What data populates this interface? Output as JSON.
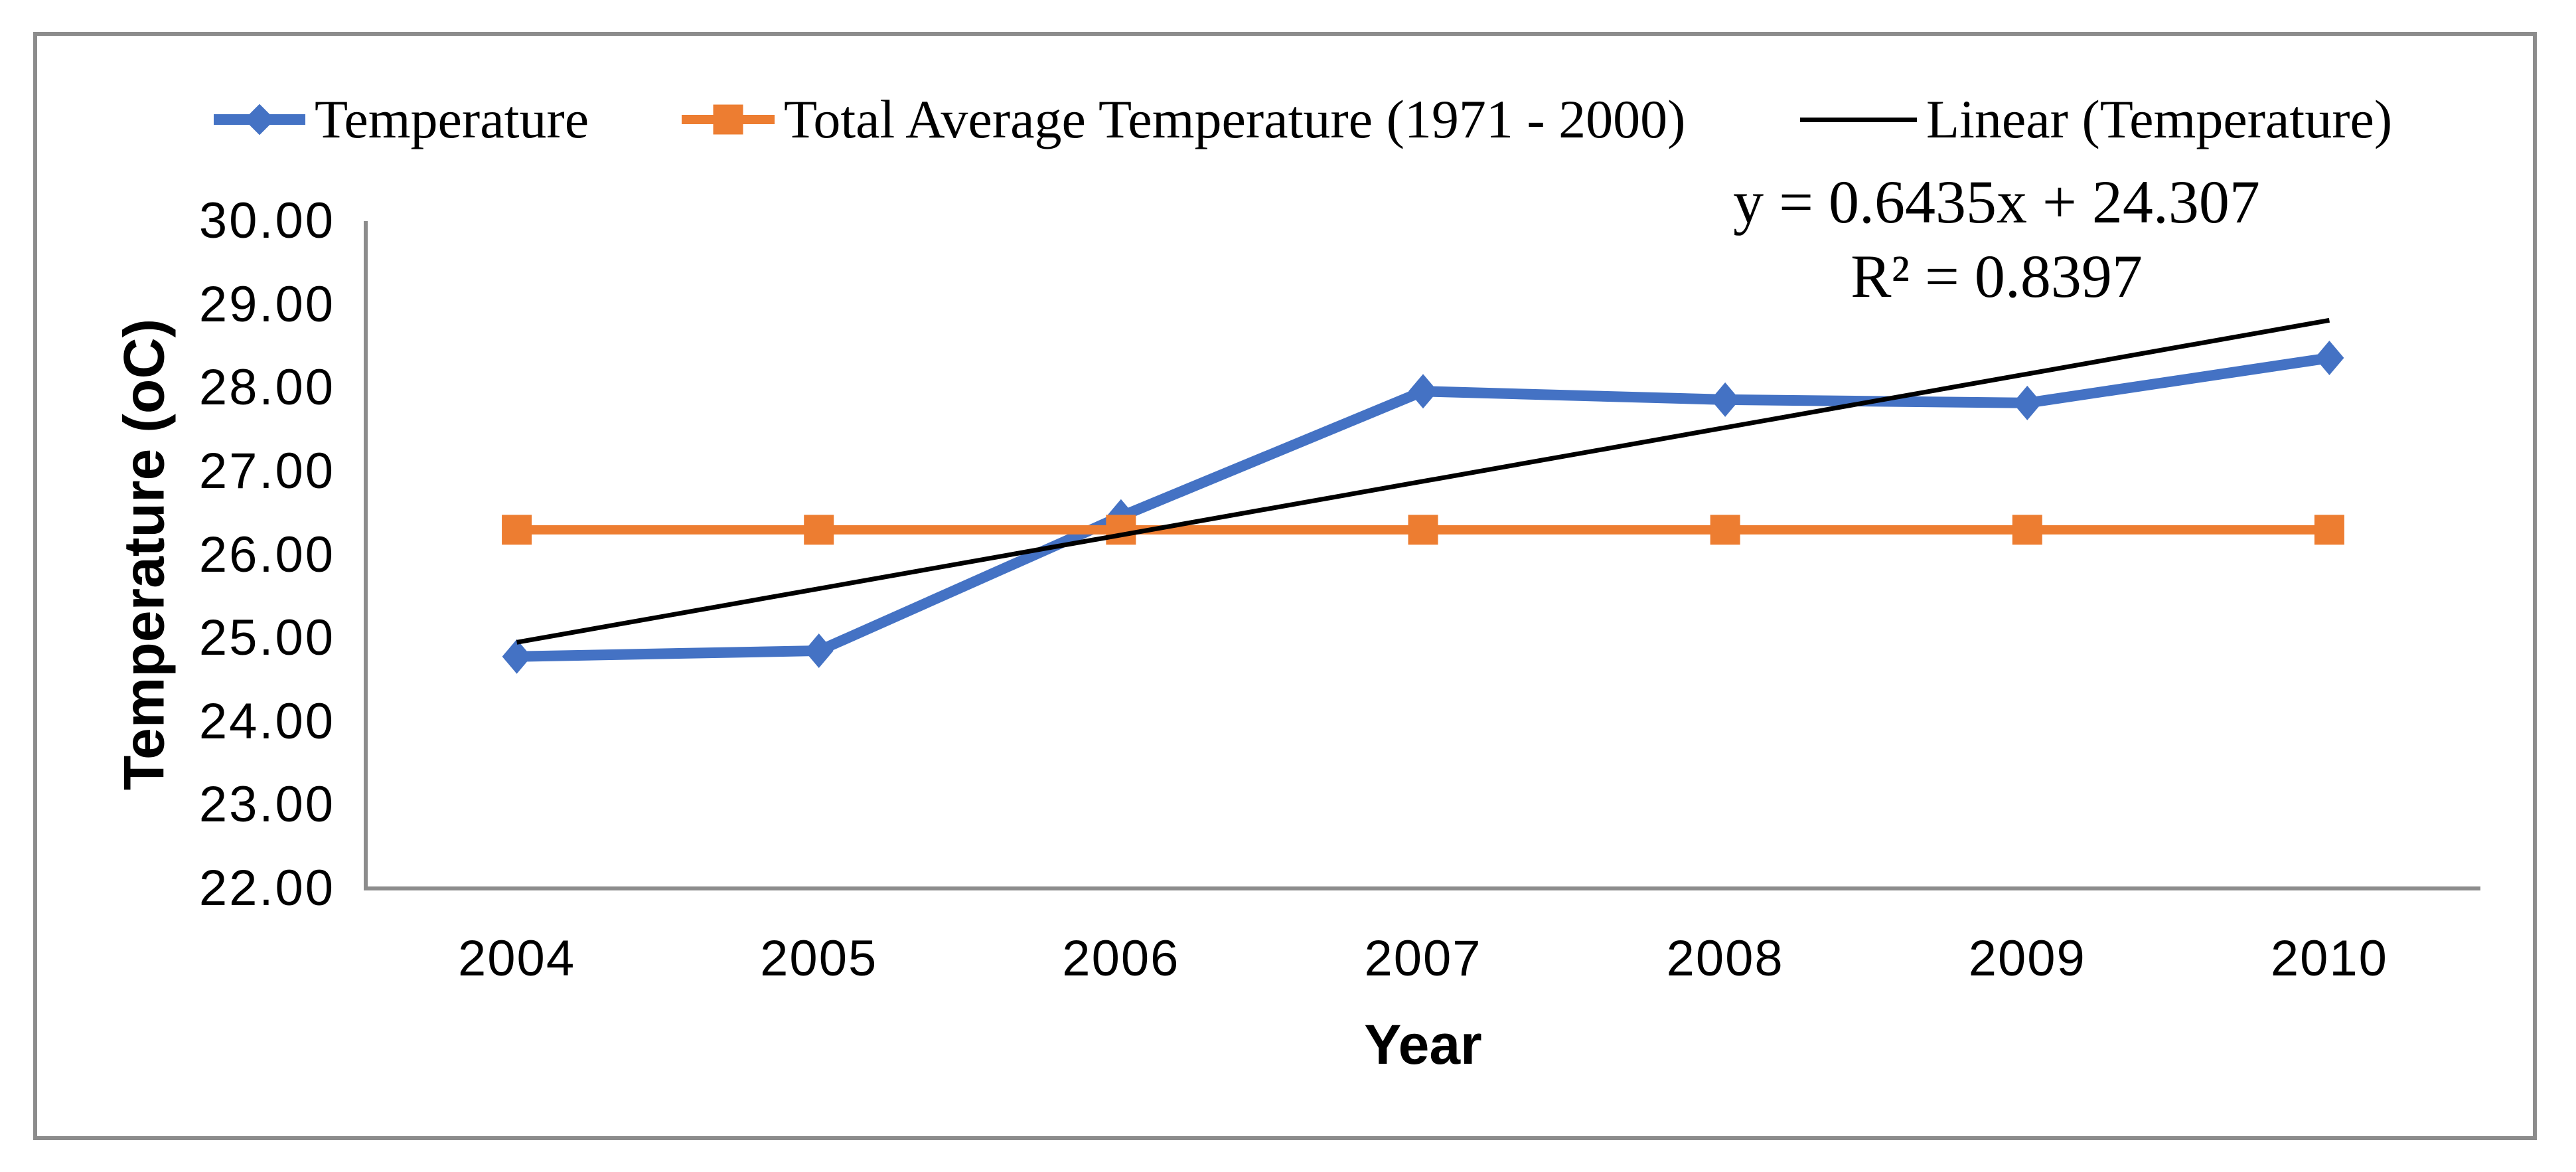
{
  "figure": {
    "background": "#FFFFFF",
    "border_color": "#8C8C8C",
    "axis_color": "#8C8C8C"
  },
  "legend": {
    "position": "top",
    "items": [
      {
        "label": "Temperature",
        "color": "#4472C4",
        "marker": "line-diamond"
      },
      {
        "label": "Total Average Temperature (1971 - 2000)",
        "color": "#ED7D31",
        "marker": "line-square"
      },
      {
        "label": "Linear (Temperature)",
        "color": "#000000",
        "marker": "line"
      }
    ]
  },
  "annotation": {
    "equation": "y = 0.6435x + 24.307",
    "r_squared": "R² = 0.8397"
  },
  "axes": {
    "y_title": "Temperature (oC)",
    "x_title": "Year",
    "y_tick_labels": [
      "30.00",
      "29.00",
      "28.00",
      "27.00",
      "26.00",
      "25.00",
      "24.00",
      "23.00",
      "22.00"
    ],
    "x_tick_labels": [
      "2004",
      "2005",
      "2006",
      "2007",
      "2008",
      "2009",
      "2010"
    ]
  },
  "chart_data": {
    "type": "line",
    "title": "",
    "xlabel": "Year",
    "ylabel": "Temperature (oC)",
    "categories": [
      "2004",
      "2005",
      "2006",
      "2007",
      "2008",
      "2009",
      "2010"
    ],
    "series": [
      {
        "name": "Temperature",
        "color": "#4472C4",
        "marker": "diamond",
        "values": [
          24.78,
          24.85,
          26.46,
          27.96,
          27.86,
          27.82,
          28.36
        ]
      },
      {
        "name": "Total Average Temperature (1971 - 2000)",
        "color": "#ED7D31",
        "marker": "square",
        "values": [
          26.3,
          26.3,
          26.3,
          26.3,
          26.3,
          26.3,
          26.3
        ]
      }
    ],
    "trendline": {
      "name": "Linear (Temperature)",
      "color": "#000000",
      "slope": 0.6435,
      "intercept": 24.307,
      "equation": "y = 0.6435x + 24.307",
      "r_squared": "R² = 0.8397"
    },
    "ylim": [
      22,
      30
    ],
    "y_tick_values": [
      30,
      29,
      28,
      27,
      26,
      25,
      24,
      23,
      22
    ],
    "grid": false,
    "legend_position": "top"
  }
}
